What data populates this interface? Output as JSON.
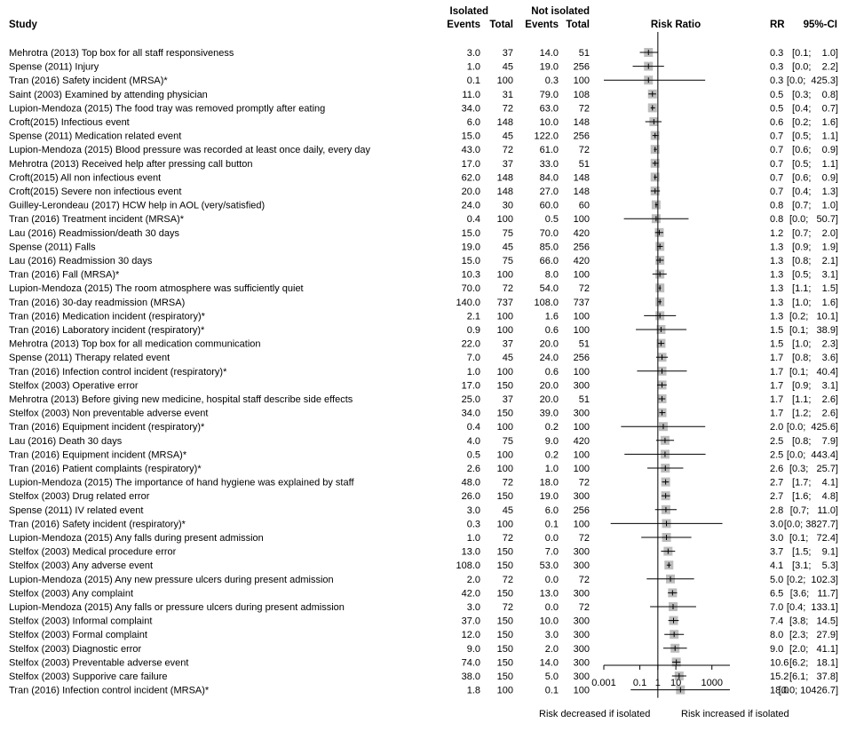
{
  "headers": {
    "study": "Study",
    "isolated": "Isolated",
    "not_isolated": "Not isolated",
    "events": "Events",
    "total": "Total",
    "risk_ratio": "Risk Ratio",
    "rr": "RR",
    "ci": "95%-CI"
  },
  "footer": {
    "left": "Risk decreased if isolated",
    "right": "Risk increased if isolated"
  },
  "chart_data": {
    "type": "forest",
    "xaxis": {
      "scale": "log",
      "range": [
        0.001,
        10000
      ],
      "ticks": [
        "0.001",
        "0.1",
        "1",
        "10",
        "1000"
      ],
      "tick_values": [
        0.001,
        0.1,
        1,
        10,
        1000
      ],
      "reference_line": 1
    },
    "columns": [
      "Study",
      "Isolated Events",
      "Isolated Total",
      "Not isolated Events",
      "Not isolated Total",
      "RR",
      "95%-CI"
    ],
    "rows": [
      {
        "study": "Mehrotra (2013) Top box for all staff  responsiveness",
        "ev1": "3.0",
        "n1": "37",
        "ev2": "14.0",
        "n2": "51",
        "rr": 0.3,
        "rr_text": "0.3",
        "ci_text": "[0.1;    1.0]",
        "lo": 0.1,
        "hi": 1.0
      },
      {
        "study": "Spense (2011) Injury",
        "ev1": "1.0",
        "n1": "45",
        "ev2": "19.0",
        "n2": "256",
        "rr": 0.3,
        "rr_text": "0.3",
        "ci_text": "[0.0;    2.2]",
        "lo": 0.04,
        "hi": 2.2
      },
      {
        "study": "Tran (2016) Safety incident (MRSA)*",
        "ev1": "0.1",
        "n1": "100",
        "ev2": "0.3",
        "n2": "100",
        "rr": 0.3,
        "rr_text": "0.3",
        "ci_text": "[0.0;  425.3]",
        "lo": 0.0002,
        "hi": 425.3
      },
      {
        "study": "Saint (2003) Examined by attending physician",
        "ev1": "11.0",
        "n1": "31",
        "ev2": "79.0",
        "n2": "108",
        "rr": 0.5,
        "rr_text": "0.5",
        "ci_text": "[0.3;    0.8]",
        "lo": 0.3,
        "hi": 0.8
      },
      {
        "study": "Lupion-Mendoza (2015) The food tray was removed promptly after eating",
        "ev1": "34.0",
        "n1": "72",
        "ev2": "63.0",
        "n2": "72",
        "rr": 0.5,
        "rr_text": "0.5",
        "ci_text": "[0.4;    0.7]",
        "lo": 0.4,
        "hi": 0.7
      },
      {
        "study": "Croft(2015)  Infectious event",
        "ev1": "6.0",
        "n1": "148",
        "ev2": "10.0",
        "n2": "148",
        "rr": 0.6,
        "rr_text": "0.6",
        "ci_text": "[0.2;    1.6]",
        "lo": 0.2,
        "hi": 1.6
      },
      {
        "study": "Spense (2011) Medication related event",
        "ev1": "15.0",
        "n1": "45",
        "ev2": "122.0",
        "n2": "256",
        "rr": 0.7,
        "rr_text": "0.7",
        "ci_text": "[0.5;    1.1]",
        "lo": 0.5,
        "hi": 1.1
      },
      {
        "study": "Lupion-Mendoza (2015) Blood pressure was recorded at least once daily, every day",
        "ev1": "43.0",
        "n1": "72",
        "ev2": "61.0",
        "n2": "72",
        "rr": 0.7,
        "rr_text": "0.7",
        "ci_text": "[0.6;    0.9]",
        "lo": 0.6,
        "hi": 0.9
      },
      {
        "study": "Mehrotra (2013) Received help after pressing call button",
        "ev1": "17.0",
        "n1": "37",
        "ev2": "33.0",
        "n2": "51",
        "rr": 0.7,
        "rr_text": "0.7",
        "ci_text": "[0.5;    1.1]",
        "lo": 0.5,
        "hi": 1.1
      },
      {
        "study": "Croft(2015)  All non infectious event",
        "ev1": "62.0",
        "n1": "148",
        "ev2": "84.0",
        "n2": "148",
        "rr": 0.7,
        "rr_text": "0.7",
        "ci_text": "[0.6;    0.9]",
        "lo": 0.6,
        "hi": 0.9
      },
      {
        "study": "Croft(2015)  Severe non infectious event",
        "ev1": "20.0",
        "n1": "148",
        "ev2": "27.0",
        "n2": "148",
        "rr": 0.7,
        "rr_text": "0.7",
        "ci_text": "[0.4;    1.3]",
        "lo": 0.4,
        "hi": 1.3
      },
      {
        "study": "Guilley-Lerondeau (2017) HCW help in AOL (very/satisfied)",
        "ev1": "24.0",
        "n1": "30",
        "ev2": "60.0",
        "n2": "60",
        "rr": 0.8,
        "rr_text": "0.8",
        "ci_text": "[0.7;    1.0]",
        "lo": 0.7,
        "hi": 1.0
      },
      {
        "study": "Tran (2016) Treatment incident (MRSA)*",
        "ev1": "0.4",
        "n1": "100",
        "ev2": "0.5",
        "n2": "100",
        "rr": 0.8,
        "rr_text": "0.8",
        "ci_text": "[0.0;   50.7]",
        "lo": 0.013,
        "hi": 50.7
      },
      {
        "study": "Lau (2016) Readmission/death 30 days",
        "ev1": "15.0",
        "n1": "75",
        "ev2": "70.0",
        "n2": "420",
        "rr": 1.2,
        "rr_text": "1.2",
        "ci_text": "[0.7;    2.0]",
        "lo": 0.7,
        "hi": 2.0
      },
      {
        "study": "Spense (2011) Falls",
        "ev1": "19.0",
        "n1": "45",
        "ev2": "85.0",
        "n2": "256",
        "rr": 1.3,
        "rr_text": "1.3",
        "ci_text": "[0.9;    1.9]",
        "lo": 0.9,
        "hi": 1.9
      },
      {
        "study": "Lau (2016) Readmission 30 days",
        "ev1": "15.0",
        "n1": "75",
        "ev2": "66.0",
        "n2": "420",
        "rr": 1.3,
        "rr_text": "1.3",
        "ci_text": "[0.8;    2.1]",
        "lo": 0.8,
        "hi": 2.1
      },
      {
        "study": "Tran (2016) Fall (MRSA)*",
        "ev1": "10.3",
        "n1": "100",
        "ev2": "8.0",
        "n2": "100",
        "rr": 1.3,
        "rr_text": "1.3",
        "ci_text": "[0.5;    3.1]",
        "lo": 0.5,
        "hi": 3.1
      },
      {
        "study": "Lupion-Mendoza (2015) The room atmosphere was sufficiently quiet",
        "ev1": "70.0",
        "n1": "72",
        "ev2": "54.0",
        "n2": "72",
        "rr": 1.3,
        "rr_text": "1.3",
        "ci_text": "[1.1;    1.5]",
        "lo": 1.1,
        "hi": 1.5
      },
      {
        "study": "Tran (2016) 30-day readmission (MRSA)",
        "ev1": "140.0",
        "n1": "737",
        "ev2": "108.0",
        "n2": "737",
        "rr": 1.3,
        "rr_text": "1.3",
        "ci_text": "[1.0;    1.6]",
        "lo": 1.0,
        "hi": 1.6
      },
      {
        "study": "Tran (2016) Medication incident (respiratory)*",
        "ev1": "2.1",
        "n1": "100",
        "ev2": "1.6",
        "n2": "100",
        "rr": 1.3,
        "rr_text": "1.3",
        "ci_text": "[0.2;   10.1]",
        "lo": 0.17,
        "hi": 10.1
      },
      {
        "study": "Tran (2016) Laboratory incident (respiratory)*",
        "ev1": "0.9",
        "n1": "100",
        "ev2": "0.6",
        "n2": "100",
        "rr": 1.5,
        "rr_text": "1.5",
        "ci_text": "[0.1;   38.9]",
        "lo": 0.06,
        "hi": 38.9
      },
      {
        "study": "Mehrotra (2013) Top box for all medication communication",
        "ev1": "22.0",
        "n1": "37",
        "ev2": "20.0",
        "n2": "51",
        "rr": 1.5,
        "rr_text": "1.5",
        "ci_text": "[1.0;    2.3]",
        "lo": 1.0,
        "hi": 2.3
      },
      {
        "study": "Spense (2011) Therapy related event",
        "ev1": "7.0",
        "n1": "45",
        "ev2": "24.0",
        "n2": "256",
        "rr": 1.7,
        "rr_text": "1.7",
        "ci_text": "[0.8;    3.6]",
        "lo": 0.8,
        "hi": 3.6
      },
      {
        "study": "Tran (2016) Infection control incident (respiratory)*",
        "ev1": "1.0",
        "n1": "100",
        "ev2": "0.6",
        "n2": "100",
        "rr": 1.7,
        "rr_text": "1.7",
        "ci_text": "[0.1;   40.4]",
        "lo": 0.07,
        "hi": 40.4
      },
      {
        "study": "Stelfox (2003) Operative error",
        "ev1": "17.0",
        "n1": "150",
        "ev2": "20.0",
        "n2": "300",
        "rr": 1.7,
        "rr_text": "1.7",
        "ci_text": "[0.9;    3.1]",
        "lo": 0.9,
        "hi": 3.1
      },
      {
        "study": "Mehrotra (2013) Before giving new medicine, hospital staff describe side effects",
        "ev1": "25.0",
        "n1": "37",
        "ev2": "20.0",
        "n2": "51",
        "rr": 1.7,
        "rr_text": "1.7",
        "ci_text": "[1.1;    2.6]",
        "lo": 1.1,
        "hi": 2.6
      },
      {
        "study": "Stelfox (2003) Non preventable adverse event",
        "ev1": "34.0",
        "n1": "150",
        "ev2": "39.0",
        "n2": "300",
        "rr": 1.7,
        "rr_text": "1.7",
        "ci_text": "[1.2;    2.6]",
        "lo": 1.2,
        "hi": 2.6
      },
      {
        "study": "Tran (2016) Equipment incident (respiratory)*",
        "ev1": "0.4",
        "n1": "100",
        "ev2": "0.2",
        "n2": "100",
        "rr": 2.0,
        "rr_text": "2.0",
        "ci_text": "[0.0;  425.6]",
        "lo": 0.009,
        "hi": 425.6
      },
      {
        "study": "Lau (2016) Death 30 days",
        "ev1": "4.0",
        "n1": "75",
        "ev2": "9.0",
        "n2": "420",
        "rr": 2.5,
        "rr_text": "2.5",
        "ci_text": "[0.8;    7.9]",
        "lo": 0.8,
        "hi": 7.9
      },
      {
        "study": "Tran (2016) Equipment incident (MRSA)*",
        "ev1": "0.5",
        "n1": "100",
        "ev2": "0.2",
        "n2": "100",
        "rr": 2.5,
        "rr_text": "2.5",
        "ci_text": "[0.0;  443.4]",
        "lo": 0.014,
        "hi": 443.4
      },
      {
        "study": "Tran (2016) Patient complaints (respiratory)*",
        "ev1": "2.6",
        "n1": "100",
        "ev2": "1.0",
        "n2": "100",
        "rr": 2.6,
        "rr_text": "2.6",
        "ci_text": "[0.3;   25.7]",
        "lo": 0.26,
        "hi": 25.7
      },
      {
        "study": "Lupion-Mendoza (2015) The importance of hand hygiene was explained by staff",
        "ev1": "48.0",
        "n1": "72",
        "ev2": "18.0",
        "n2": "72",
        "rr": 2.7,
        "rr_text": "2.7",
        "ci_text": "[1.7;    4.1]",
        "lo": 1.7,
        "hi": 4.1
      },
      {
        "study": "Stelfox (2003) Drug related error",
        "ev1": "26.0",
        "n1": "150",
        "ev2": "19.0",
        "n2": "300",
        "rr": 2.7,
        "rr_text": "2.7",
        "ci_text": "[1.6;    4.8]",
        "lo": 1.6,
        "hi": 4.8
      },
      {
        "study": "Spense (2011) IV related event",
        "ev1": "3.0",
        "n1": "45",
        "ev2": "6.0",
        "n2": "256",
        "rr": 2.8,
        "rr_text": "2.8",
        "ci_text": "[0.7;   11.0]",
        "lo": 0.7,
        "hi": 11.0
      },
      {
        "study": "Tran (2016) Safety incident (respiratory)*",
        "ev1": "0.3",
        "n1": "100",
        "ev2": "0.1",
        "n2": "100",
        "rr": 3.0,
        "rr_text": "3.0",
        "ci_text": "[0.0; 3827.7]",
        "lo": 0.0024,
        "hi": 3827.7
      },
      {
        "study": "Lupion-Mendoza (2015) Any falls during present admission",
        "ev1": "1.0",
        "n1": "72",
        "ev2": "0.0",
        "n2": "72",
        "rr": 3.0,
        "rr_text": "3.0",
        "ci_text": "[0.1;   72.4]",
        "lo": 0.12,
        "hi": 72.4
      },
      {
        "study": "Stelfox (2003) Medical procedure error",
        "ev1": "13.0",
        "n1": "150",
        "ev2": "7.0",
        "n2": "300",
        "rr": 3.7,
        "rr_text": "3.7",
        "ci_text": "[1.5;    9.1]",
        "lo": 1.5,
        "hi": 9.1
      },
      {
        "study": "Stelfox (2003) Any adverse event",
        "ev1": "108.0",
        "n1": "150",
        "ev2": "53.0",
        "n2": "300",
        "rr": 4.1,
        "rr_text": "4.1",
        "ci_text": "[3.1;    5.3]",
        "lo": 3.1,
        "hi": 5.3
      },
      {
        "study": "Lupion-Mendoza (2015) Any new pressure ulcers during present admission",
        "ev1": "2.0",
        "n1": "72",
        "ev2": "0.0",
        "n2": "72",
        "rr": 5.0,
        "rr_text": "5.0",
        "ci_text": "[0.2;  102.3]",
        "lo": 0.24,
        "hi": 102.3
      },
      {
        "study": "Stelfox (2003) Any complaint",
        "ev1": "42.0",
        "n1": "150",
        "ev2": "13.0",
        "n2": "300",
        "rr": 6.5,
        "rr_text": "6.5",
        "ci_text": "[3.6;   11.7]",
        "lo": 3.6,
        "hi": 11.7
      },
      {
        "study": "Lupion-Mendoza (2015) Any falls or pressure ulcers during present admission",
        "ev1": "3.0",
        "n1": "72",
        "ev2": "0.0",
        "n2": "72",
        "rr": 7.0,
        "rr_text": "7.0",
        "ci_text": "[0.4;  133.1]",
        "lo": 0.37,
        "hi": 133.1
      },
      {
        "study": "Stelfox (2003) Informal complaint",
        "ev1": "37.0",
        "n1": "150",
        "ev2": "10.0",
        "n2": "300",
        "rr": 7.4,
        "rr_text": "7.4",
        "ci_text": "[3.8;   14.5]",
        "lo": 3.8,
        "hi": 14.5
      },
      {
        "study": "Stelfox (2003) Formal complaint",
        "ev1": "12.0",
        "n1": "150",
        "ev2": "3.0",
        "n2": "300",
        "rr": 8.0,
        "rr_text": "8.0",
        "ci_text": "[2.3;   27.9]",
        "lo": 2.3,
        "hi": 27.9
      },
      {
        "study": "Stelfox (2003) Diagnostic error",
        "ev1": "9.0",
        "n1": "150",
        "ev2": "2.0",
        "n2": "300",
        "rr": 9.0,
        "rr_text": "9.0",
        "ci_text": "[2.0;   41.1]",
        "lo": 2.0,
        "hi": 41.1
      },
      {
        "study": "Stelfox (2003) Preventable adverse event",
        "ev1": "74.0",
        "n1": "150",
        "ev2": "14.0",
        "n2": "300",
        "rr": 10.6,
        "rr_text": "10.6",
        "ci_text": "[6.2;   18.1]",
        "lo": 6.2,
        "hi": 18.1
      },
      {
        "study": "Stelfox (2003) Supporive care failure",
        "ev1": "38.0",
        "n1": "150",
        "ev2": "5.0",
        "n2": "300",
        "rr": 15.2,
        "rr_text": "15.2",
        "ci_text": "[6.1;   37.8]",
        "lo": 6.1,
        "hi": 37.8
      },
      {
        "study": "Tran (2016) Infection control incident (MRSA)*",
        "ev1": "1.8",
        "n1": "100",
        "ev2": "0.1",
        "n2": "100",
        "rr": 18.0,
        "rr_text": "18.0",
        "ci_text": "[0.0; 10426.7]",
        "lo": 0.031,
        "hi": 10426.7
      }
    ],
    "colors": {
      "box": "#bdbdbd",
      "line": "#000000"
    }
  }
}
